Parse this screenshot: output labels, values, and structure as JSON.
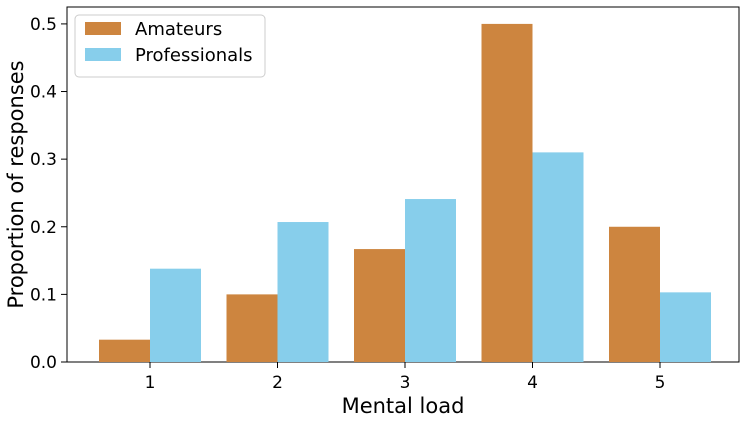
{
  "chart_data": {
    "type": "bar",
    "categories": [
      "1",
      "2",
      "3",
      "4",
      "5"
    ],
    "series": [
      {
        "name": "Amateurs",
        "color": "#cd853f",
        "values": [
          0.033,
          0.1,
          0.167,
          0.5,
          0.2
        ]
      },
      {
        "name": "Professionals",
        "color": "#87ceeb",
        "values": [
          0.138,
          0.207,
          0.241,
          0.31,
          0.103
        ]
      }
    ],
    "title": "",
    "xlabel": "Mental load",
    "ylabel": "Proportion of responses",
    "ylim": [
      0,
      0.525
    ],
    "yticks": [
      "0.0",
      "0.1",
      "0.2",
      "0.3",
      "0.4",
      "0.5"
    ],
    "grid": false,
    "legend_position": "top-left"
  }
}
